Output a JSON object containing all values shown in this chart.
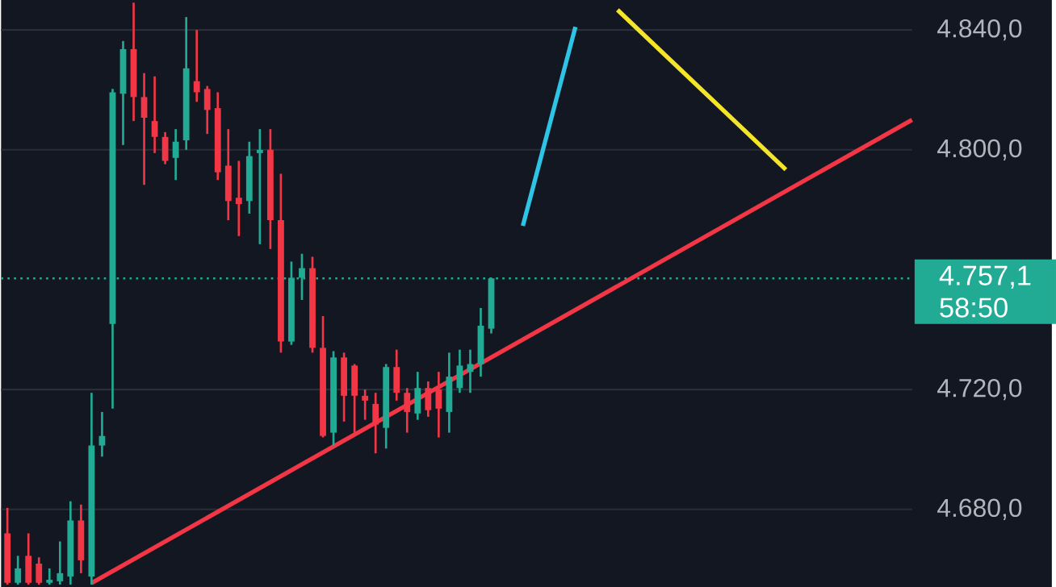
{
  "chart_data": {
    "type": "candlestick",
    "categories": [
      null,
      null,
      null,
      null,
      null,
      null,
      null,
      null,
      null,
      null,
      null,
      null,
      null,
      null,
      null,
      null,
      null,
      null,
      null,
      null,
      null,
      null,
      null,
      null,
      null,
      null,
      null,
      null,
      null,
      null,
      null,
      null,
      null,
      null,
      null,
      null,
      null,
      null,
      null,
      null,
      null,
      null,
      null,
      null,
      null,
      null,
      null,
      null,
      null,
      null,
      null,
      null,
      null,
      null,
      null,
      null,
      null,
      null,
      null,
      null,
      null,
      null,
      null,
      null,
      null,
      null,
      null,
      null,
      null,
      null,
      null,
      null,
      null,
      null,
      null,
      null,
      null,
      null,
      null,
      null,
      null,
      null,
      null,
      null,
      null,
      null,
      null
    ],
    "ohlc": [
      [
        4672.0,
        4680.5,
        4654.9,
        4655.5
      ],
      [
        4655.5,
        4664.5,
        4654.9,
        4660.3
      ],
      [
        4664.5,
        4672.0,
        4654.9,
        4655.5
      ],
      [
        4661.9,
        4664.0,
        4654.9,
        4655.5
      ],
      [
        4655.5,
        4660.3,
        4654.9,
        4656.5
      ],
      [
        4656.0,
        4669.3,
        4654.9,
        4658.7
      ],
      [
        4657.6,
        4682.7,
        4654.9,
        4676.3
      ],
      [
        4676.3,
        4681.6,
        4658.7,
        4663.0
      ],
      [
        4657.6,
        4718.9,
        4654.9,
        4701.3
      ],
      [
        4701.3,
        4712.5,
        4697.6,
        4704.5
      ],
      [
        4741.9,
        4820.3,
        4713.6,
        4819.2
      ],
      [
        4818.7,
        4836.3,
        4801.6,
        4833.6
      ],
      [
        4833.6,
        4849.1,
        4809.6,
        4817.6
      ],
      [
        4817.6,
        4825.6,
        4788.3,
        4810.7
      ],
      [
        4809.6,
        4824.5,
        4798.9,
        4804.3
      ],
      [
        4804.3,
        4805.9,
        4795.2,
        4796.3
      ],
      [
        4797.3,
        4806.9,
        4789.9,
        4802.7
      ],
      [
        4803.2,
        4844.3,
        4800.0,
        4827.2
      ],
      [
        4822.9,
        4840.0,
        4816.0,
        4819.2
      ],
      [
        4820.3,
        4821.3,
        4805.3,
        4813.3
      ],
      [
        4813.9,
        4819.2,
        4789.9,
        4792.5
      ],
      [
        4794.7,
        4806.9,
        4776.5,
        4782.9
      ],
      [
        4784.0,
        4796.3,
        4771.2,
        4781.9
      ],
      [
        4782.9,
        4802.7,
        4778.7,
        4797.9
      ],
      [
        4798.9,
        4806.9,
        4768.5,
        4800.0
      ],
      [
        4800.0,
        4806.9,
        4766.9,
        4776.5
      ],
      [
        4776.5,
        4792.0,
        4732.3,
        4736.0
      ],
      [
        4736.0,
        4762.7,
        4734.9,
        4757.3
      ],
      [
        4757.3,
        4765.3,
        4749.9,
        4760.5
      ],
      [
        4760.5,
        4764.3,
        4732.3,
        4733.9
      ],
      [
        4733.9,
        4744.5,
        4704.0,
        4704.5
      ],
      [
        4705.6,
        4732.8,
        4701.3,
        4730.7
      ],
      [
        4730.7,
        4732.3,
        4709.3,
        4717.9
      ],
      [
        4728.0,
        4728.5,
        4705.6,
        4717.9
      ],
      [
        4717.9,
        4720.0,
        4709.9,
        4716.3
      ],
      [
        4715.2,
        4718.9,
        4698.7,
        4708.3
      ],
      [
        4707.2,
        4728.5,
        4700.3,
        4727.5
      ],
      [
        4727.5,
        4733.3,
        4716.3,
        4718.9
      ],
      [
        4718.9,
        4720.5,
        4705.6,
        4712.5
      ],
      [
        4712.0,
        4725.9,
        4709.9,
        4720.5
      ],
      [
        4720.5,
        4722.7,
        4710.9,
        4713.1
      ],
      [
        4720.0,
        4725.9,
        4704.0,
        4713.6
      ],
      [
        4712.5,
        4732.3,
        4705.6,
        4724.3
      ],
      [
        4720.5,
        4733.3,
        4718.9,
        4728.0
      ],
      [
        4725.9,
        4733.3,
        4718.9,
        4728.5
      ],
      [
        4728.5,
        4747.2,
        4724.3,
        4741.3
      ],
      [
        4740.3,
        4757.3,
        4738.7,
        4757.1
      ],
      null,
      null,
      null,
      null,
      null,
      null,
      null,
      null,
      null,
      null,
      null,
      null,
      null,
      null,
      null,
      null,
      null,
      null,
      null,
      null,
      null,
      null,
      null,
      null,
      null,
      null,
      null,
      null,
      null,
      null,
      null,
      null,
      null,
      null,
      null,
      null,
      null,
      null,
      null,
      null
    ],
    "colors": [
      "#f23645",
      "#22ab94",
      "#f23645",
      "#f23645",
      "#22ab94",
      "#22ab94",
      "#22ab94",
      "#f23645",
      "#22ab94",
      "#22ab94",
      "#22ab94",
      "#22ab94",
      "#f23645",
      "#f23645",
      "#f23645",
      "#f23645",
      "#22ab94",
      "#22ab94",
      "#f23645",
      "#f23645",
      "#f23645",
      "#f23645",
      "#f23645",
      "#22ab94",
      "#22ab94",
      "#f23645",
      "#f23645",
      "#22ab94",
      "#22ab94",
      "#f23645",
      "#f23645",
      "#22ab94",
      "#f23645",
      "#f23645",
      "#f23645",
      "#f23645",
      "#22ab94",
      "#f23645",
      "#f23645",
      "#22ab94",
      "#f23645",
      "#f23645",
      "#22ab94",
      "#22ab94",
      "#22ab94",
      "#22ab94",
      "#22ab94",
      null,
      null,
      null,
      null,
      null,
      null,
      null,
      null,
      null,
      null,
      null,
      null,
      null,
      null,
      null,
      null,
      null,
      null,
      null,
      null,
      null,
      null,
      null,
      null,
      null,
      null,
      null,
      null,
      null,
      null,
      null,
      null,
      null,
      null,
      null,
      null,
      null,
      null,
      null,
      null
    ],
    "series": [
      {
        "type": "line",
        "color": "#f23645",
        "values": [
          null,
          null,
          null,
          null,
          null,
          null,
          null,
          null,
          4655.4,
          null,
          null,
          null,
          null,
          null,
          null,
          null,
          null,
          null,
          null,
          null,
          null,
          null,
          null,
          null,
          null,
          null,
          null,
          null,
          null,
          null,
          null,
          null,
          null,
          null,
          null,
          null,
          null,
          null,
          null,
          null,
          null,
          null,
          null,
          null,
          null,
          null,
          null,
          null,
          null,
          null,
          null,
          null,
          null,
          null,
          null,
          null,
          null,
          null,
          null,
          null,
          null,
          null,
          null,
          null,
          null,
          null,
          null,
          null,
          null,
          null,
          null,
          null,
          null,
          null,
          null,
          null,
          null,
          null,
          null,
          null,
          null,
          null,
          null,
          null,
          null,
          null,
          4810.0
        ]
      },
      {
        "type": "line",
        "color": "#2ec4e6",
        "values": [
          null,
          null,
          null,
          null,
          null,
          null,
          null,
          null,
          null,
          null,
          null,
          null,
          null,
          null,
          null,
          null,
          null,
          null,
          null,
          null,
          null,
          null,
          null,
          null,
          null,
          null,
          null,
          null,
          null,
          null,
          null,
          null,
          null,
          null,
          null,
          null,
          null,
          null,
          null,
          null,
          null,
          null,
          null,
          null,
          null,
          null,
          null,
          null,
          null,
          4774.6,
          null,
          null,
          null,
          null,
          4841.0,
          null,
          null,
          null,
          null,
          null,
          null,
          null,
          null,
          null,
          null,
          null,
          null,
          null,
          null,
          null,
          null,
          null,
          null,
          null,
          null,
          null,
          null,
          null,
          null,
          null,
          null,
          null,
          null,
          null,
          null,
          null,
          null
        ]
      },
      {
        "type": "line",
        "color": "#f5e52a",
        "values": [
          null,
          null,
          null,
          null,
          null,
          null,
          null,
          null,
          null,
          null,
          null,
          null,
          null,
          null,
          null,
          null,
          null,
          null,
          null,
          null,
          null,
          null,
          null,
          null,
          null,
          null,
          null,
          null,
          null,
          null,
          null,
          null,
          null,
          null,
          null,
          null,
          null,
          null,
          null,
          null,
          null,
          null,
          null,
          null,
          null,
          null,
          null,
          null,
          null,
          null,
          null,
          null,
          null,
          null,
          null,
          null,
          null,
          null,
          4846.7,
          null,
          null,
          null,
          null,
          null,
          null,
          null,
          null,
          null,
          null,
          null,
          null,
          null,
          null,
          null,
          4793.4,
          null,
          null,
          null,
          null,
          null,
          null,
          null,
          null,
          null,
          null,
          null,
          null
        ]
      }
    ],
    "ylim": [
      4654,
      4850
    ],
    "yticks": [
      {
        "value": 4680,
        "label": "4.680,0"
      },
      {
        "value": 4720,
        "label": "4.720,0"
      },
      {
        "value": 4800,
        "label": "4.800,0"
      },
      {
        "value": 4840,
        "label": "4.840,0"
      }
    ],
    "ref_lines": [
      {
        "axis": "y",
        "value": 4757.1,
        "label": "4.757,1",
        "color": "#22ab94",
        "line_style": "dotted"
      }
    ],
    "annotations": [
      "58:50"
    ],
    "grid": "y",
    "tick_labels": "y"
  }
}
